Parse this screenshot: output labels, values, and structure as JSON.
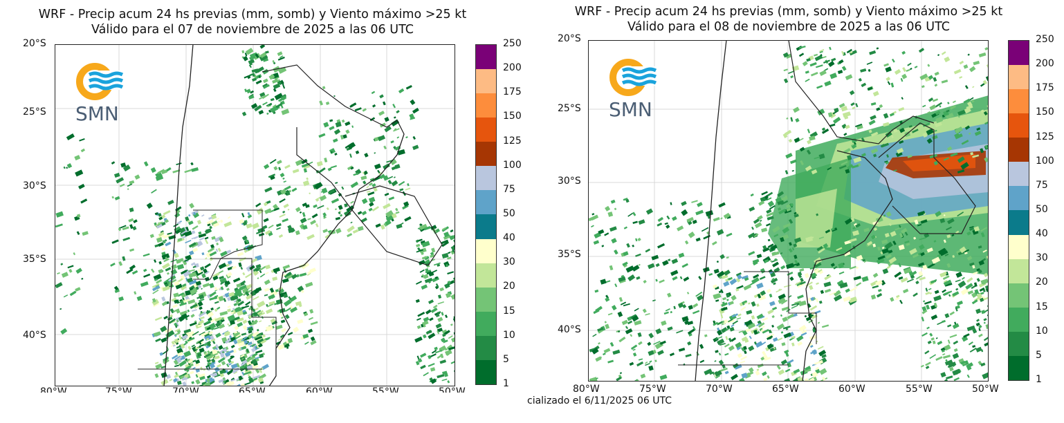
{
  "maps": [
    {
      "title_line1": "WRF - Precip acum 24 hs previas (mm, somb) y Viento máximo >25 kt",
      "title_line2": "Válido para el 07 de noviembre de 2025 a las 06 UTC",
      "lat_labels": [
        "20°S",
        "25°S",
        "30°S",
        "35°S",
        "40°S"
      ],
      "lon_labels": [
        "80°W",
        "75°W",
        "70°W",
        "65°W",
        "60°W",
        "55°W",
        "50°W"
      ],
      "logo_text": "SMN"
    },
    {
      "title_line1": "WRF - Precip acum 24 hs previas (mm, somb) y Viento máximo >25 kt",
      "title_line2": "Válido para el 08 de noviembre de 2025 a las 06 UTC",
      "lat_labels": [
        "20°S",
        "25°S",
        "30°S",
        "35°S",
        "40°S"
      ],
      "lon_labels": [
        "80°W",
        "75°W",
        "70°W",
        "65°W",
        "60°W",
        "55°W",
        "50°W"
      ],
      "logo_text": "SMN"
    }
  ],
  "colorbar": {
    "levels": [
      "1",
      "5",
      "10",
      "15",
      "20",
      "30",
      "40",
      "50",
      "75",
      "100",
      "125",
      "150",
      "175",
      "200",
      "250"
    ],
    "colors": [
      "#006d2c",
      "#238b45",
      "#41ab5d",
      "#74c476",
      "#c2e699",
      "#ffffcc",
      "#0b7b8b",
      "#5fa3c9",
      "#b9c6de",
      "#a63603",
      "#e6550d",
      "#fd8d3c",
      "#fdbb84",
      "#7a0177",
      "#c51b8a"
    ]
  },
  "footer": "cializado el 6/11/2025 06 UTC",
  "logo_colors": {
    "sun": "#f7a81b",
    "waves": "#1aa3dc"
  }
}
